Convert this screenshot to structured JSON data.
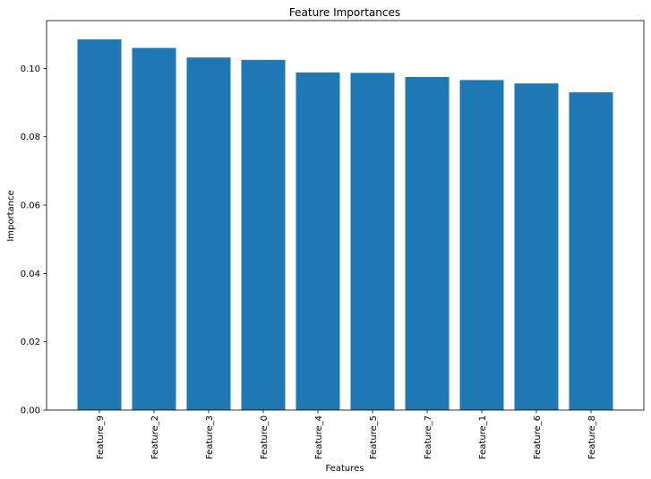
{
  "chart_data": {
    "type": "bar",
    "title": "Feature Importances",
    "xlabel": "Features",
    "ylabel": "Importance",
    "categories": [
      "Feature_9",
      "Feature_2",
      "Feature_3",
      "Feature_0",
      "Feature_4",
      "Feature_5",
      "Feature_7",
      "Feature_1",
      "Feature_6",
      "Feature_8"
    ],
    "values": [
      0.1085,
      0.106,
      0.1032,
      0.1025,
      0.0988,
      0.0987,
      0.0975,
      0.0966,
      0.0956,
      0.093
    ],
    "ylim": [
      0,
      0.114
    ],
    "yticks": [
      0.0,
      0.02,
      0.04,
      0.06,
      0.08,
      0.1
    ],
    "ytick_labels": [
      "0.00",
      "0.02",
      "0.04",
      "0.06",
      "0.08",
      "0.10"
    ],
    "grid": false,
    "legend": "none",
    "bar_color": "#1f77b4"
  }
}
